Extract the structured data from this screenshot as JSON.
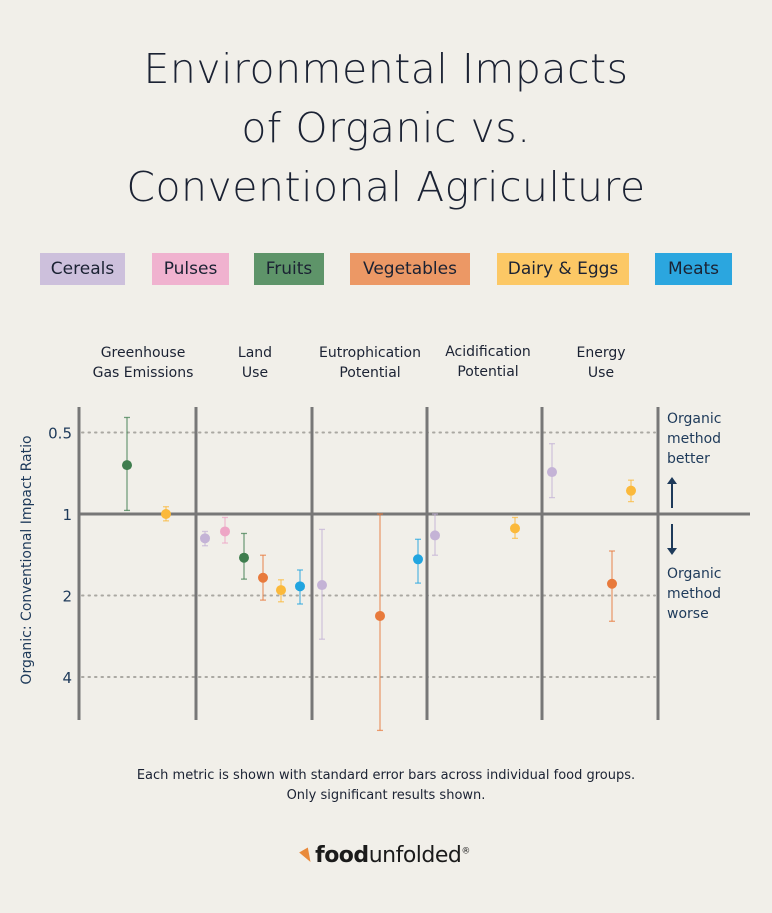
{
  "title_lines": [
    "Environmental Impacts",
    "of Organic vs.",
    "Conventional Agriculture"
  ],
  "legend": [
    {
      "label": "Cereals",
      "color": "#cdc0dc"
    },
    {
      "label": "Pulses",
      "color": "#f0b2cf"
    },
    {
      "label": "Fruits",
      "color": "#5e9469"
    },
    {
      "label": "Vegetables",
      "color": "#ec9865"
    },
    {
      "label": "Dairy & Eggs",
      "color": "#fcc865"
    },
    {
      "label": "Meats",
      "color": "#2ba6df"
    }
  ],
  "note_lines": [
    "Each metric is shown with standard error bars across individual food groups.",
    "Only significant results shown."
  ],
  "logo": {
    "bold": "food",
    "thin": "unfolded",
    "mark": "®"
  },
  "chart_data": {
    "type": "scatter",
    "ylabel": "Organic: Conventional Impact Ratio",
    "y_scale": "log2, reversed (higher ratio downward)",
    "y_ticks": [
      0.5,
      1,
      2,
      4
    ],
    "y_tick_labels": [
      "0.5",
      "1",
      "2",
      "4"
    ],
    "ylim": [
      0.4,
      6.5
    ],
    "grid": "dotted at 0.5, 2, 4; solid at 1",
    "metrics": [
      {
        "label_lines": [
          "Greenhouse",
          "Gas Emissions"
        ]
      },
      {
        "label_lines": [
          "Land",
          "Use"
        ]
      },
      {
        "label_lines": [
          "Eutrophication",
          "Potential"
        ]
      },
      {
        "label_lines": [
          "Acidification",
          "Potential"
        ]
      },
      {
        "label_lines": [
          "Energy",
          "Use"
        ]
      }
    ],
    "annotations": {
      "better": [
        "Organic",
        "method",
        "better"
      ],
      "worse": [
        "Organic",
        "method",
        "worse"
      ]
    },
    "series_colors": {
      "Cereals": "#c4b3d6",
      "Pulses": "#eea6c6",
      "Fruits": "#3f7d4e",
      "Vegetables": "#e87a3c",
      "Dairy & Eggs": "#fbb93b",
      "Meats": "#21a5e0"
    },
    "points": [
      {
        "metric": 0,
        "group": "Fruits",
        "value": 0.66,
        "low": 0.44,
        "high": 0.97
      },
      {
        "metric": 0,
        "group": "Dairy & Eggs",
        "value": 1.0,
        "low": 0.94,
        "high": 1.06
      },
      {
        "metric": 1,
        "group": "Cereals",
        "value": 1.23,
        "low": 1.16,
        "high": 1.31
      },
      {
        "metric": 1,
        "group": "Pulses",
        "value": 1.16,
        "low": 1.03,
        "high": 1.28
      },
      {
        "metric": 1,
        "group": "Fruits",
        "value": 1.45,
        "low": 1.18,
        "high": 1.74
      },
      {
        "metric": 1,
        "group": "Vegetables",
        "value": 1.72,
        "low": 1.42,
        "high": 2.08
      },
      {
        "metric": 1,
        "group": "Dairy & Eggs",
        "value": 1.91,
        "low": 1.75,
        "high": 2.11
      },
      {
        "metric": 1,
        "group": "Meats",
        "value": 1.85,
        "low": 1.61,
        "high": 2.15
      },
      {
        "metric": 2,
        "group": "Cereals",
        "value": 1.83,
        "low": 1.14,
        "high": 2.9
      },
      {
        "metric": 2,
        "group": "Vegetables",
        "value": 2.38,
        "low": 1.0,
        "high": 6.3
      },
      {
        "metric": 2,
        "group": "Meats",
        "value": 1.47,
        "low": 1.24,
        "high": 1.8
      },
      {
        "metric": 3,
        "group": "Cereals",
        "value": 1.2,
        "low": 1.0,
        "high": 1.42
      },
      {
        "metric": 3,
        "group": "Dairy & Eggs",
        "value": 1.13,
        "low": 1.03,
        "high": 1.23
      },
      {
        "metric": 4,
        "group": "Cereals",
        "value": 0.7,
        "low": 0.55,
        "high": 0.87
      },
      {
        "metric": 4,
        "group": "Vegetables",
        "value": 1.81,
        "low": 1.37,
        "high": 2.49
      },
      {
        "metric": 4,
        "group": "Dairy & Eggs",
        "value": 0.82,
        "low": 0.75,
        "high": 0.9
      }
    ]
  }
}
